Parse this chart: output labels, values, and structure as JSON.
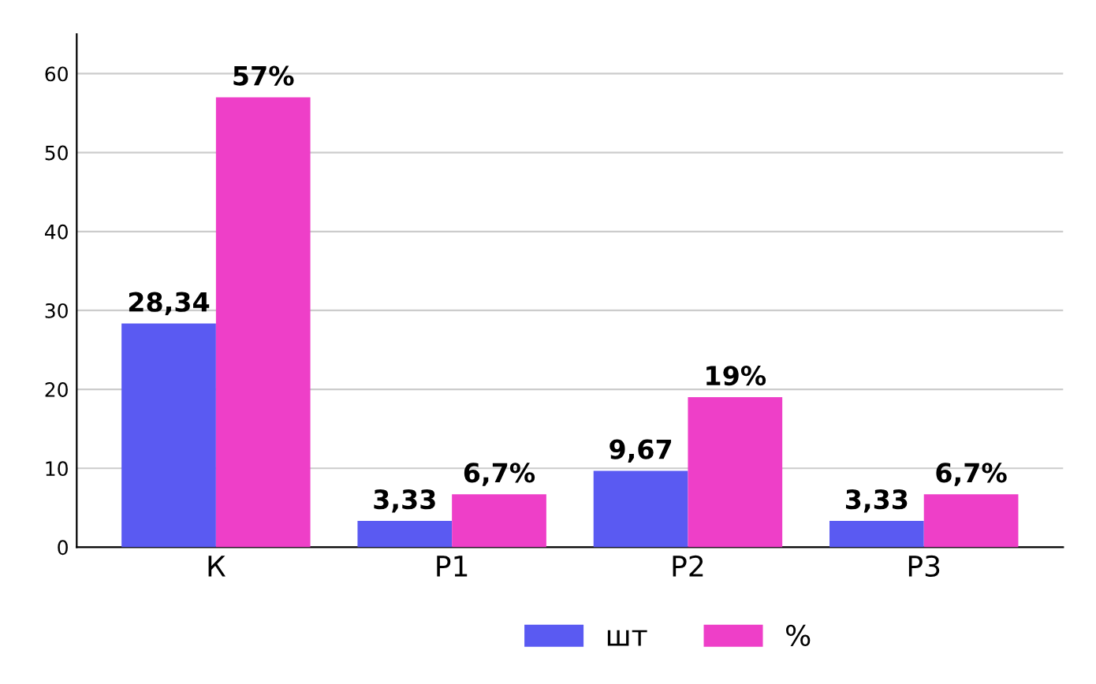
{
  "chart_data": {
    "type": "bar",
    "categories": [
      "К",
      "Р1",
      "Р2",
      "Р3"
    ],
    "series": [
      {
        "name": "шт",
        "color": "#5a5af2",
        "values": [
          28.34,
          3.33,
          9.67,
          3.33
        ],
        "value_labels": [
          "28,34",
          "3,33",
          "9,67",
          "3,33"
        ]
      },
      {
        "name": "%",
        "color": "#ee3fc8",
        "values": [
          57,
          6.7,
          19,
          6.7
        ],
        "value_labels": [
          "57%",
          "6,7%",
          "19%",
          "6,7%"
        ]
      }
    ],
    "ylim": [
      0,
      65
    ],
    "yticks": [
      0,
      10,
      20,
      30,
      40,
      50,
      60
    ],
    "grid": "y",
    "legend": "bottom"
  }
}
